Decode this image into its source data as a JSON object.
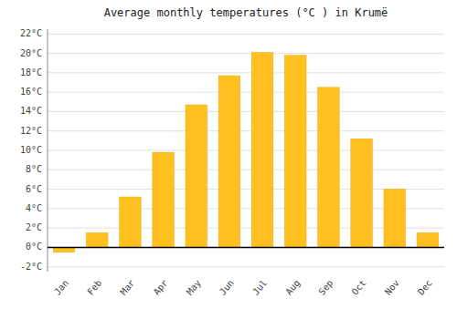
{
  "chart_data": {
    "type": "bar",
    "title": "Average monthly temperatures (°C ) in Krumë",
    "categories": [
      "Jan",
      "Feb",
      "Mar",
      "Apr",
      "May",
      "Jun",
      "Jul",
      "Aug",
      "Sep",
      "Oct",
      "Nov",
      "Dec"
    ],
    "values": [
      -0.5,
      1.5,
      5.2,
      9.8,
      14.7,
      17.7,
      20.1,
      19.8,
      16.5,
      11.2,
      6.0,
      1.5
    ],
    "color": "#FFC020",
    "ylim": [
      -2.5,
      22.5
    ],
    "yticks": [
      {
        "value": -2,
        "label": "-2°C"
      },
      {
        "value": 0,
        "label": "0°C"
      },
      {
        "value": 2,
        "label": "2°C"
      },
      {
        "value": 4,
        "label": "4°C"
      },
      {
        "value": 6,
        "label": "6°C"
      },
      {
        "value": 8,
        "label": "8°C"
      },
      {
        "value": 10,
        "label": "10°C"
      },
      {
        "value": 12,
        "label": "12°C"
      },
      {
        "value": 14,
        "label": "14°C"
      },
      {
        "value": 16,
        "label": "16°C"
      },
      {
        "value": 18,
        "label": "18°C"
      },
      {
        "value": 20,
        "label": "20°C"
      },
      {
        "value": 22,
        "label": "22°C"
      }
    ],
    "grid": true
  }
}
